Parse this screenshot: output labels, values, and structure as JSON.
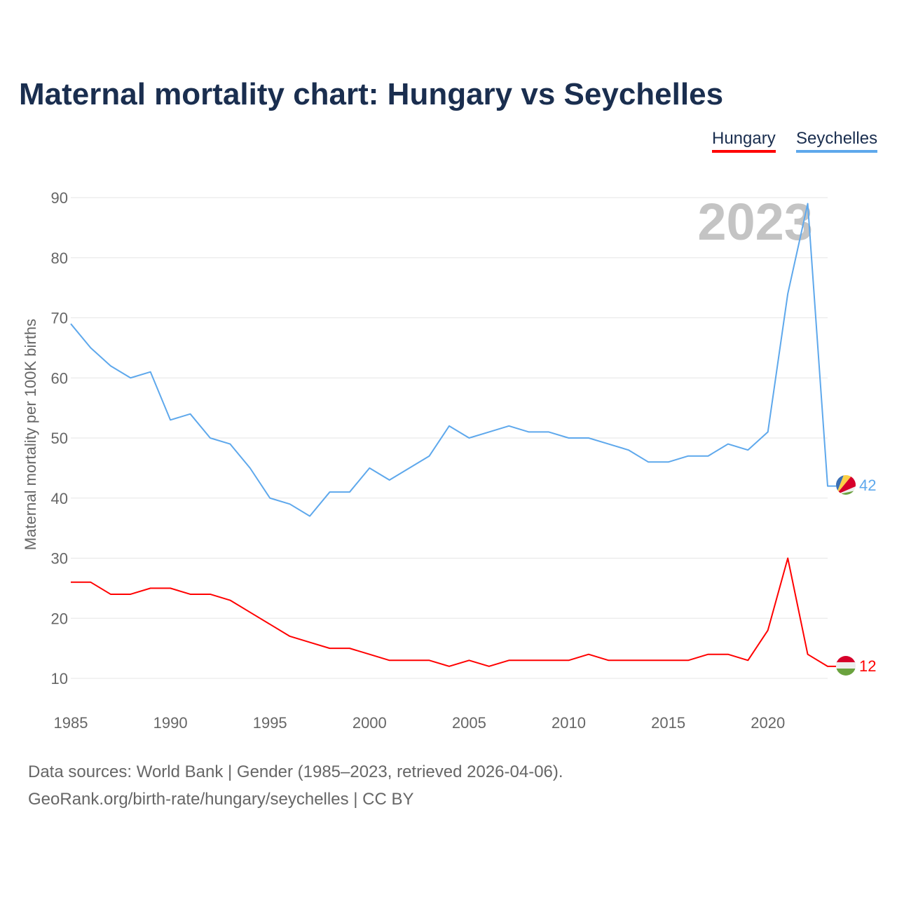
{
  "title": "Maternal mortality chart: Hungary vs Seychelles",
  "legend": [
    "Hungary",
    "Seychelles"
  ],
  "year_label": "2023",
  "footer": {
    "line1": "Data sources: World Bank | Gender (1985–2023, retrieved 2026-04-06).",
    "line2": "GeoRank.org/birth-rate/hungary/seychelles | CC BY"
  },
  "chart_data": {
    "type": "line",
    "title": "Maternal mortality chart: Hungary vs Seychelles",
    "xlabel": "",
    "ylabel": "Maternal mortality per 100K births",
    "xlim": [
      1985,
      2023
    ],
    "ylim": [
      10,
      90
    ],
    "xticks": [
      1985,
      1990,
      1995,
      2000,
      2005,
      2010,
      2015,
      2020
    ],
    "yticks": [
      10,
      20,
      30,
      40,
      50,
      60,
      70,
      80,
      90
    ],
    "grid": true,
    "legend_position": "top-right",
    "x": [
      1985,
      1986,
      1987,
      1988,
      1989,
      1990,
      1991,
      1992,
      1993,
      1994,
      1995,
      1996,
      1997,
      1998,
      1999,
      2000,
      2001,
      2002,
      2003,
      2004,
      2005,
      2006,
      2007,
      2008,
      2009,
      2010,
      2011,
      2012,
      2013,
      2014,
      2015,
      2016,
      2017,
      2018,
      2019,
      2020,
      2021,
      2022,
      2023
    ],
    "series": [
      {
        "name": "Hungary",
        "color": "#ff0000",
        "end_label": "12",
        "values": [
          26,
          26,
          24,
          24,
          25,
          25,
          24,
          24,
          23,
          21,
          19,
          17,
          16,
          15,
          15,
          14,
          13,
          13,
          13,
          12,
          13,
          12,
          13,
          13,
          13,
          13,
          14,
          13,
          13,
          13,
          13,
          13,
          14,
          14,
          13,
          18,
          30,
          14,
          12
        ]
      },
      {
        "name": "Seychelles",
        "color": "#5ea8ec",
        "end_label": "42",
        "values": [
          69,
          65,
          62,
          60,
          61,
          53,
          54,
          50,
          49,
          45,
          40,
          39,
          37,
          41,
          41,
          45,
          43,
          45,
          47,
          52,
          50,
          51,
          52,
          51,
          51,
          50,
          50,
          49,
          48,
          46,
          46,
          47,
          47,
          49,
          48,
          51,
          74,
          89,
          42
        ]
      }
    ]
  }
}
